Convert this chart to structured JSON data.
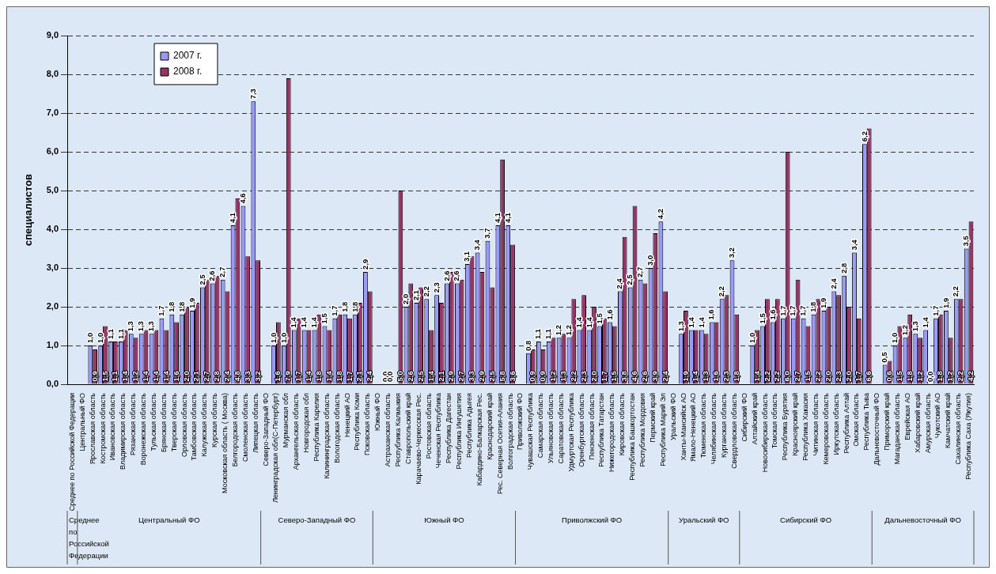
{
  "chart_data": {
    "type": "bar",
    "ylabel": "специалистов",
    "legend": "top left",
    "grid": "y",
    "ylim": [
      0,
      9
    ],
    "yticks": [
      {
        "value": 0,
        "label": "0,0"
      },
      {
        "value": 1,
        "label": "1,0"
      },
      {
        "value": 2,
        "label": "2,0"
      },
      {
        "value": 3,
        "label": "3,0"
      },
      {
        "value": 4,
        "label": "4,0"
      },
      {
        "value": 5,
        "label": "5,0"
      },
      {
        "value": 6,
        "label": "6,0"
      },
      {
        "value": 7,
        "label": "7,0"
      },
      {
        "value": 8,
        "label": "8,0"
      },
      {
        "value": 9,
        "label": "9,0"
      }
    ],
    "categories": [
      "Среднее по Российской Федерации",
      "Центральный ФО",
      "Ярославская область",
      "Костромская область",
      "Ивановская область",
      "Владимирская область",
      "Рязанская область",
      "Воронежская область",
      "Тульская область",
      "Брянская область",
      "Тверская область",
      "Орловская область",
      "Тамбовская область",
      "Калужская область",
      "Курская область",
      "Московская область ( Москва)",
      "Белгородская область",
      "Смоленская область",
      "Липецкая область",
      "Северо-Западный ФО",
      "Ленинградская обл(С-Петербург)",
      "Мурманская обл",
      "Архангельская область",
      "Новгородская обл",
      "Республика Карелия",
      "Калининградская область",
      "Вологодская область",
      "Ненецкий АО",
      "Республика Коми",
      "Псковская область",
      "Южный ФО",
      "Астраханская область",
      "Республика Калмыкия",
      "Ставропольский край",
      "Карачаево-Черкесская Рес.",
      "Ростовская область",
      "Чеченская Республика",
      "Республика Дагестан",
      "Республика Ингушетия",
      "Республика Адыгея",
      "Кабардино-Балкарская Рес.",
      "Краснодарский край",
      "Рес. Северная Осетия-Алания",
      "Волгоградская область",
      "Приволжский ФО",
      "Чувашская Республика",
      "Самарская область",
      "Ульяновская область",
      "Саратовская область",
      "Удмуртская Республика",
      "Оренбургская область",
      "Пензенская область",
      "Республика Татарстан",
      "Нижегородская область",
      "Кировская область",
      "Республика Башкортостан",
      "Республика Мордовия",
      "Пермский край",
      "Республика Марий Эл",
      "Уральский ФО",
      "Ханты-Мансийск АО",
      "Ямало-Ненецкий АО",
      "Тюменская область",
      "Челябинская область",
      "Курганская область",
      "Свердловская область",
      "Сибирский ФО",
      "Алтайский край",
      "Новосибирская область",
      "Томская область",
      "Республика Бурятия",
      "Красноярский край",
      "Республика Хакасия",
      "Читинская область",
      "Кемеровская область",
      "Иркутская область",
      "Республика Алтай",
      "Омская область",
      "Республика Тыва",
      "Дальневосточный ФО",
      "Приморский край",
      "Магаданская область",
      "Еврейская АО",
      "Хабаровский край",
      "Амурская область",
      "Чукотский АО",
      "Камчатский край",
      "Сахалинская область",
      "Республика Саха (Якутия)"
    ],
    "series": [
      {
        "name": "2007 г.",
        "color": "#9999ff",
        "values": [
          null,
          null,
          1.0,
          1.0,
          1.1,
          1.1,
          1.3,
          1.3,
          1.3,
          1.7,
          1.8,
          1.8,
          1.9,
          2.5,
          2.6,
          2.7,
          4.1,
          4.6,
          7.3,
          null,
          1.0,
          1.0,
          1.4,
          1.4,
          1.4,
          1.5,
          1.7,
          1.8,
          1.8,
          2.9,
          null,
          0,
          null,
          2.0,
          2.1,
          2.2,
          2.3,
          2.6,
          2.6,
          3.1,
          3.4,
          3.7,
          4.1,
          4.1,
          null,
          0.8,
          1.1,
          1.1,
          1.2,
          1.2,
          1.4,
          1.4,
          1.5,
          1.6,
          2.4,
          2.5,
          2.7,
          3.0,
          4.2,
          null,
          1.3,
          1.4,
          1.4,
          1.6,
          2.2,
          3.2,
          null,
          1.0,
          1.5,
          1.6,
          1.7,
          1.7,
          1.7,
          1.8,
          1.9,
          2.4,
          2.8,
          3.4,
          6.2,
          null,
          0.5,
          1.0,
          1.2,
          1.3,
          1.4,
          1.7,
          1.9,
          2.2,
          3.5
        ],
        "value_labels": [
          null,
          null,
          "1,0",
          "1,0",
          "1,1",
          "1,1",
          "1,3",
          "1,3",
          "1,3",
          "1,7",
          "1,8",
          "1,8",
          "1,9",
          "2,5",
          "2,6",
          "2,7",
          "4,1",
          "4,6",
          "7,3",
          null,
          "1,0",
          "1,0",
          "1,4",
          "1,4",
          "1,4",
          "1,5",
          "1,7",
          "1,8",
          "1,8",
          "2,9",
          null,
          "0,0",
          null,
          "2,0",
          "2,1",
          "2,2",
          "2,3",
          "2,6",
          "2,6",
          "3,1",
          "3,4",
          "3,7",
          "4,1",
          "4,1",
          null,
          "0,8",
          "1,1",
          "1,1",
          "1,2",
          "1,2",
          "1,4",
          "1,4",
          "1,5",
          "1,6",
          "2,4",
          "2,5",
          "2,7",
          "3,0",
          "4,2",
          null,
          "1,3",
          "1,4",
          "1,4",
          "1,6",
          "2,2",
          "3,2",
          null,
          "1,0",
          "1,5",
          "1,6",
          "1,7",
          "1,7",
          "1,7",
          "1,8",
          "1,9",
          "2,4",
          "2,8",
          "3,4",
          "6,2",
          null,
          "0,5",
          "1,0",
          "1,2",
          "1,3",
          "1,4",
          "1,7",
          "1,9",
          "2,2",
          "3,5"
        ]
      },
      {
        "name": "2008 г.",
        "color": "#993366",
        "values": [
          null,
          null,
          0.9,
          1.5,
          1.1,
          1.4,
          1.2,
          1.4,
          1.4,
          1.4,
          1.6,
          2.0,
          2.1,
          2.7,
          2.8,
          2.4,
          4.8,
          3.3,
          3.2,
          null,
          1.6,
          7.9,
          1.7,
          1.4,
          1.8,
          1.4,
          1.8,
          1.7,
          2.1,
          2.4,
          null,
          0,
          5.0,
          2.6,
          2.5,
          1.4,
          2.1,
          2.9,
          2.7,
          3.3,
          2.9,
          2.5,
          5.8,
          3.6,
          null,
          0.9,
          0.9,
          1.2,
          1.3,
          2.2,
          2.3,
          2.0,
          1.7,
          1.5,
          3.8,
          4.6,
          2.6,
          3.9,
          2.4,
          null,
          1.9,
          1.4,
          1.3,
          1.6,
          2.3,
          1.8,
          null,
          1.4,
          2.2,
          2.2,
          6.0,
          2.7,
          1.5,
          2.2,
          2.0,
          2.3,
          2.0,
          1.7,
          6.6,
          null,
          0.6,
          1.5,
          1.8,
          1.2,
          0.0,
          1.8,
          1.2,
          2.2,
          4.2
        ],
        "value_labels": [
          null,
          null,
          "0,9",
          "1,5",
          "1,1",
          "1,4",
          "1,2",
          "1,4",
          "1,4",
          "1,4",
          "1,6",
          "2,0",
          "2,1",
          "2,7",
          "2,8",
          "2,4",
          "4,8",
          "3,3",
          "3,2",
          null,
          "1,6",
          "7,9",
          "1,7",
          "1,4",
          "1,8",
          "1,4",
          "1,8",
          "1,7",
          "2,1",
          "2,4",
          null,
          "0,0",
          "5,0",
          "2,6",
          "2,5",
          "1,4",
          "2,1",
          "2,9",
          "2,7",
          "3,3",
          "2,9",
          "2,5",
          "5,8",
          "3,6",
          null,
          "0,9",
          "0,9",
          "1,2",
          "1,3",
          "2,2",
          "2,3",
          "2,0",
          "1,7",
          "1,5",
          "3,8",
          "4,6",
          "2,6",
          "3,9",
          "2,4",
          null,
          "1,9",
          "1,4",
          "1,3",
          "1,6",
          "2,3",
          "1,8",
          null,
          "1,4",
          "2,2",
          "2,2",
          "6,0",
          "2,7",
          "1,5",
          "2,2",
          "2,0",
          "2,3",
          "2,0",
          "1,7",
          "6,6",
          null,
          "0,6",
          "1,5",
          "1,8",
          "1,2",
          "0,0",
          "1,8",
          "1,2",
          "2,2",
          "4,2"
        ]
      }
    ],
    "annotations": [
      "Среднее по Российской Федерации",
      "Центральный ФО",
      "Северо-Западный ФО",
      "Южный ФО",
      "Приволжский ФО",
      "Уральский ФО",
      "Сибирский ФО",
      "Дальневосточный ФО"
    ]
  }
}
